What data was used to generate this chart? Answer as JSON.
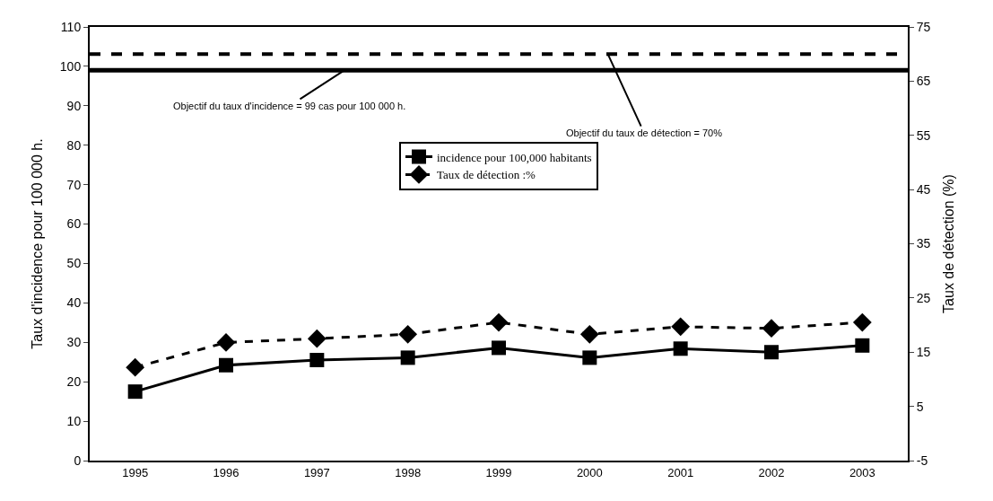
{
  "chart_data": {
    "type": "line",
    "categories": [
      "1995",
      "1996",
      "1997",
      "1998",
      "1999",
      "2000",
      "2001",
      "2002",
      "2003"
    ],
    "ylabel": "Taux d'incidence pour 100 000 h.",
    "y2label": "Taux de détection (%)",
    "ylim": [
      0,
      110
    ],
    "yticks": [
      0,
      10,
      20,
      30,
      40,
      50,
      60,
      70,
      80,
      90,
      100,
      110
    ],
    "y2lim": [
      -5,
      75
    ],
    "y2ticks": [
      -5,
      5,
      15,
      25,
      35,
      45,
      55,
      65,
      75
    ],
    "series": [
      {
        "name": "incidence pour 100,000 habitants",
        "color": "#000000",
        "marker": "square",
        "line_style": "solid",
        "values": [
          17.5,
          24.2,
          25.5,
          26.1,
          28.6,
          26.1,
          28.4,
          27.5,
          29.2
        ]
      },
      {
        "name": "Taux de détection :%",
        "color": "#000000",
        "marker": "diamond",
        "line_style": "dashed",
        "axis": "y2",
        "values": [
          12.2,
          16.8,
          17.5,
          18.3,
          20.5,
          18.3,
          19.7,
          19.4,
          20.5
        ]
      }
    ],
    "ref_lines": [
      {
        "axis": "y",
        "value": 99,
        "label": "Objectif du taux d'incidence = 99 cas pour 100 000 h.",
        "color": "#000000",
        "line_style": "solid"
      },
      {
        "axis": "y2",
        "value": 70,
        "label": "Objectif du taux de détection = 70%",
        "color": "#000000",
        "line_style": "dashed"
      }
    ],
    "legend": "center"
  }
}
